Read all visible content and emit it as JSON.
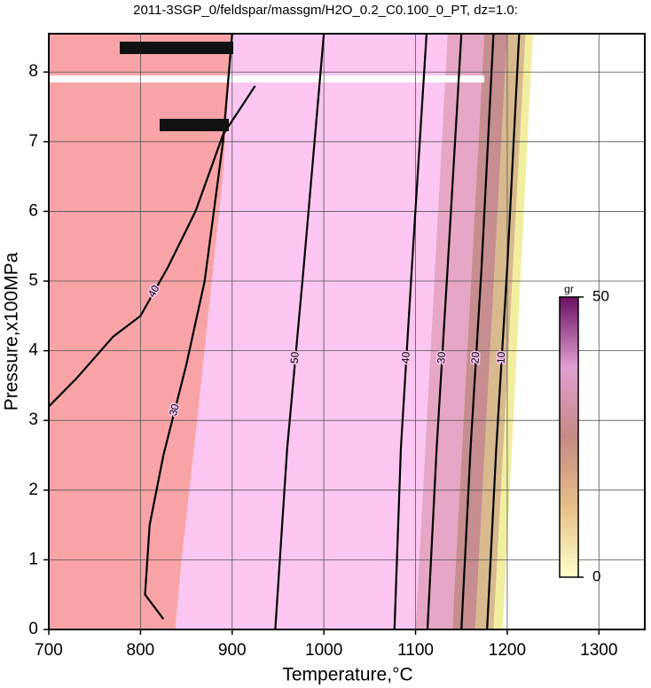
{
  "chart_data": {
    "type": "contour",
    "title": "2011-3SGP_0/feldspar/massgm/H2O_0.2_C0.100_0_PT, dz=1.0:",
    "xlabel": "Temperature,°C",
    "ylabel": "Pressure,x100MPa",
    "xlim": [
      700,
      1350
    ],
    "ylim": [
      0,
      8.55
    ],
    "xticks": [
      700,
      800,
      900,
      1000,
      1100,
      1200,
      1300
    ],
    "yticks": [
      0,
      1,
      2,
      3,
      4,
      5,
      6,
      7,
      8
    ],
    "grid": true,
    "regions": [
      {
        "color": "#f8a4a6",
        "x": [
          700,
          838,
          845,
          862,
          878,
          890,
          900,
          700
        ],
        "y": [
          0,
          0,
          1,
          3,
          5,
          6.5,
          8.55,
          8.55
        ]
      },
      {
        "color": "#fbc6f2",
        "x": [
          838,
          1100,
          1135,
          900,
          890,
          878,
          862,
          845
        ],
        "y": [
          0,
          0,
          8.55,
          8.55,
          6.5,
          5,
          3,
          1
        ]
      },
      {
        "color": "#e6a6c6",
        "x": [
          1100,
          1140,
          1175,
          1135
        ],
        "y": [
          0,
          0,
          8.55,
          8.55
        ]
      },
      {
        "color": "#c68e90",
        "x": [
          1140,
          1165,
          1200,
          1175
        ],
        "y": [
          0,
          0,
          8.55,
          8.55
        ]
      },
      {
        "color": "#d8ba8e",
        "x": [
          1165,
          1185,
          1220,
          1200
        ],
        "y": [
          0,
          0,
          8.55,
          8.55
        ]
      },
      {
        "color": "#f2eea0",
        "x": [
          1185,
          1195,
          1228,
          1220
        ],
        "y": [
          0,
          0,
          8.55,
          8.55
        ]
      },
      {
        "color": "#ffffff",
        "x": [
          700,
          1175,
          1175,
          700
        ],
        "y": [
          7.85,
          7.85,
          7.95,
          7.95
        ]
      }
    ],
    "contours": [
      {
        "level": 30,
        "x": [
          825,
          805,
          810,
          825,
          850,
          870,
          880,
          890,
          900
        ],
        "y": [
          0.15,
          0.5,
          1.5,
          2.5,
          3.8,
          5,
          6,
          7,
          8.55
        ]
      },
      {
        "level": 40,
        "x": [
          700,
          730,
          770,
          800,
          830,
          860,
          890,
          925
        ],
        "y": [
          3.2,
          3.6,
          4.2,
          4.5,
          5.2,
          6,
          7.1,
          7.8
        ]
      },
      {
        "level": 50,
        "x": [
          947,
          960,
          978,
          1000
        ],
        "y": [
          0,
          2.6,
          5.2,
          8.55
        ]
      },
      {
        "level": 40,
        "x": [
          1077,
          1084,
          1096,
          1112
        ],
        "y": [
          0,
          2.6,
          5.2,
          8.55
        ]
      },
      {
        "level": 30,
        "x": [
          1113,
          1123,
          1135,
          1150
        ],
        "y": [
          0,
          2.6,
          5.2,
          8.55
        ]
      },
      {
        "level": 20,
        "x": [
          1150,
          1160,
          1172,
          1185
        ],
        "y": [
          0,
          2.6,
          5.2,
          8.55
        ]
      },
      {
        "level": 10,
        "x": [
          1178,
          1188,
          1200,
          1213
        ],
        "y": [
          0,
          2.6,
          5.2,
          8.55
        ]
      }
    ],
    "colorbar": {
      "label": "gr",
      "lim": [
        0,
        50
      ],
      "ticks": [
        0,
        50
      ],
      "colors": [
        "#ffffcc",
        "#e6c08a",
        "#c48a86",
        "#e0a0d0",
        "#6a1060"
      ]
    }
  }
}
